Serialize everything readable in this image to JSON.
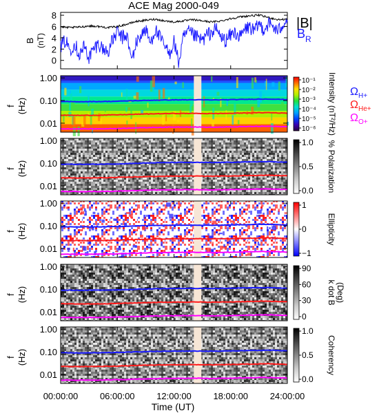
{
  "title": "ACE Mag 2000-049",
  "xlabel": "Time (UT)",
  "x_ticks": [
    "00:00:00",
    "06:00:00",
    "12:00:00",
    "18:00:00",
    "24:00:00"
  ],
  "colors": {
    "blue": "#1a1aff",
    "red": "#ff1a1a",
    "magenta": "#ff00ff",
    "data_gap": "#f7e6d6"
  },
  "chart_data": [
    {
      "type": "line",
      "panel": "B",
      "ylabel": "B\n(nT)",
      "y_ticks": [
        "8",
        "6",
        "4",
        "2",
        "0"
      ],
      "ylim": [
        -1.5,
        8.5
      ],
      "x_range_hours": [
        0,
        24
      ],
      "legend": [
        "|B|",
        "B_R"
      ],
      "series": [
        {
          "name": "|B|",
          "color": "#000000",
          "x": [
            0,
            1,
            2,
            3,
            4,
            5,
            6,
            7,
            8,
            9,
            10,
            11,
            12,
            13,
            14,
            15,
            16,
            17,
            18,
            19,
            20,
            21,
            22,
            23,
            24
          ],
          "values": [
            5.9,
            5.8,
            5.9,
            6.1,
            6.0,
            5.8,
            6.0,
            6.4,
            6.9,
            7.1,
            7.3,
            7.0,
            6.8,
            7.0,
            7.2,
            7.0,
            6.8,
            7.0,
            7.4,
            7.7,
            7.9,
            8.0,
            7.6,
            7.2,
            7.3
          ]
        },
        {
          "name": "B_R",
          "color": "#1a1aff",
          "x": [
            0,
            0.5,
            1,
            1.5,
            2,
            2.5,
            3,
            3.5,
            4,
            4.5,
            5,
            5.5,
            6,
            6.5,
            7,
            7.5,
            8,
            8.5,
            9,
            9.5,
            10,
            10.5,
            11,
            11.5,
            12,
            12.5,
            13,
            13.5,
            14,
            14.5,
            15,
            15.5,
            16,
            16.5,
            17,
            17.5,
            18,
            18.5,
            19,
            19.5,
            20,
            20.5,
            21,
            21.5,
            22,
            22.5,
            23,
            23.5,
            24
          ],
          "values": [
            2.5,
            3.5,
            2.0,
            3.0,
            1.0,
            2.5,
            0.5,
            2.0,
            3.0,
            2.0,
            1.5,
            3.5,
            5.0,
            4.0,
            4.5,
            0.0,
            3.0,
            4.5,
            5.5,
            3.0,
            5.5,
            4.0,
            2.5,
            1.0,
            3.5,
            -0.5,
            4.0,
            5.0,
            4.5,
            4.0,
            3.5,
            4.5,
            5.0,
            5.5,
            4.0,
            3.5,
            4.5,
            5.0,
            4.0,
            5.5,
            6.0,
            5.0,
            6.5,
            5.5,
            6.5,
            6.0,
            5.0,
            6.5,
            7.5
          ]
        }
      ]
    },
    {
      "type": "heatmap",
      "panel": "Intensity",
      "ylabel": "f\n(Hz)",
      "y_ticks": [
        "1.00",
        "0.10",
        "0.01"
      ],
      "colorbar_label": "Intensity (nT²/Hz)",
      "colorbar_ticks": [
        "10⁻¹",
        "10⁻²",
        "10⁻³",
        "10⁻⁴",
        "10⁻⁵",
        "10⁻⁶"
      ],
      "gap_hours": [
        14.1,
        14.9
      ],
      "legend": [
        "ΩH+",
        "ΩHe+",
        "ΩO+"
      ]
    },
    {
      "type": "heatmap",
      "panel": "Polarization",
      "ylabel": "f\n(Hz)",
      "y_ticks": [
        "1.00",
        "0.10",
        "0.01"
      ],
      "colorbar_label": "% Polarization",
      "colorbar_ticks": [
        "1.0",
        "0.5",
        "0.0"
      ],
      "gap_hours": [
        14.1,
        14.9
      ]
    },
    {
      "type": "heatmap",
      "panel": "Ellipticity",
      "ylabel": "f\n(Hz)",
      "y_ticks": [
        "1.00",
        "0.10",
        "0.01"
      ],
      "colorbar_label": "Ellipticity",
      "colorbar_ticks": [
        "1",
        "0",
        "−1"
      ],
      "gap_hours": [
        14.1,
        14.9
      ]
    },
    {
      "type": "heatmap",
      "panel": "k dot B",
      "ylabel": "f\n(Hz)",
      "y_ticks": [
        "1.00",
        "0.10",
        "0.01"
      ],
      "colorbar_label": "k dot B",
      "colorbar_unit": "(Deg)",
      "colorbar_ticks": [
        "90",
        "60",
        "30",
        "0"
      ],
      "gap_hours": [
        14.1,
        14.9
      ]
    },
    {
      "type": "heatmap",
      "panel": "Coherency",
      "ylabel": "f\n(Hz)",
      "y_ticks": [
        "1.00",
        "0.10",
        "0.01"
      ],
      "colorbar_label": "Coherency",
      "colorbar_ticks": [
        "1.0",
        "0.5",
        "0.0"
      ],
      "gap_hours": [
        14.1,
        14.9
      ]
    }
  ],
  "gyro_lines": {
    "hours": [
      0,
      2,
      4,
      6,
      8,
      10,
      12,
      14,
      16,
      18,
      20,
      22,
      24
    ],
    "H_plus_hz": [
      0.09,
      0.089,
      0.09,
      0.093,
      0.099,
      0.104,
      0.107,
      0.108,
      0.106,
      0.109,
      0.114,
      0.117,
      0.11
    ],
    "He_plus_hz": [
      0.0225,
      0.0222,
      0.0225,
      0.0233,
      0.0247,
      0.026,
      0.0268,
      0.027,
      0.0265,
      0.0273,
      0.0285,
      0.0293,
      0.0275
    ],
    "O_plus_hz": [
      0.0056,
      0.0056,
      0.0056,
      0.0058,
      0.0062,
      0.0065,
      0.0067,
      0.0068,
      0.0066,
      0.0068,
      0.0071,
      0.0073,
      0.0069
    ]
  }
}
